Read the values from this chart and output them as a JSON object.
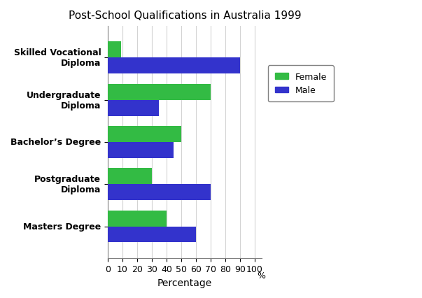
{
  "title": "Post-School Qualifications in Australia 1999",
  "categories": [
    "Skilled Vocational\nDiploma",
    "Undergraduate\nDiploma",
    "Bachelor’s Degree",
    "Postgraduate\nDiploma",
    "Masters Degree"
  ],
  "female_values": [
    9,
    70,
    50,
    30,
    40
  ],
  "male_values": [
    90,
    35,
    45,
    70,
    60
  ],
  "female_color": "#33bb44",
  "male_color": "#3333cc",
  "xlabel": "Percentage",
  "xticks": [
    0,
    10,
    20,
    30,
    40,
    50,
    60,
    70,
    80,
    90,
    100
  ],
  "xtick_labels": [
    "0",
    "10",
    "20",
    "30",
    "40",
    "50",
    "60",
    "70",
    "80",
    "90",
    "100"
  ],
  "percent_label": "%",
  "bg_color": "#ffffff",
  "bar_height": 0.38,
  "title_fontsize": 11,
  "label_fontsize": 9,
  "legend_labels": [
    "Female",
    "Male"
  ]
}
